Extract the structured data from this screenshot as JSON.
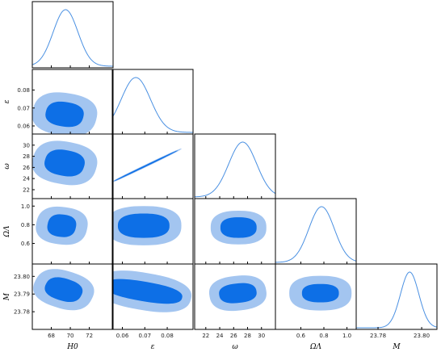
{
  "chart_data": {
    "type": "triangle-corner",
    "parameters": [
      {
        "key": "H0",
        "label": "H0",
        "range": [
          66.0,
          74.5
        ],
        "ticks": [
          68,
          70,
          72
        ],
        "tick_labels": [
          "68",
          "70",
          "72"
        ],
        "peak": 69.5,
        "sigma": 1.3
      },
      {
        "key": "eps",
        "label": "ε",
        "range": [
          0.0555,
          0.0915
        ],
        "ticks": [
          0.06,
          0.07,
          0.08
        ],
        "tick_labels": [
          "0.06",
          "0.07",
          "0.08"
        ],
        "y_ticks": [
          0.06,
          0.07,
          0.08
        ],
        "y_tick_labels": [
          "0.06",
          "0.07",
          "0.08"
        ],
        "peak": 0.066,
        "sigma": 0.0065
      },
      {
        "key": "omega",
        "label": "ω",
        "range": [
          20.4,
          32.0
        ],
        "ticks": [
          22,
          24,
          26,
          28,
          30
        ],
        "tick_labels": [
          "22",
          "24",
          "26",
          "28",
          "30"
        ],
        "y_ticks": [
          22,
          24,
          26,
          28,
          30
        ],
        "y_tick_labels": [
          "22",
          "24",
          "26",
          "28",
          "30"
        ],
        "peak": 27.3,
        "sigma": 2.0
      },
      {
        "key": "OmegaL",
        "label": "ΩΛ",
        "range": [
          0.38,
          1.08
        ],
        "ticks": [
          0.6,
          0.8,
          1.0
        ],
        "tick_labels": [
          "0.6",
          "0.8",
          "1.0"
        ],
        "y_ticks": [
          0.6,
          0.8,
          1.0
        ],
        "y_tick_labels": [
          "0.6",
          "0.8",
          "1.0"
        ],
        "peak": 0.78,
        "sigma": 0.11
      },
      {
        "key": "M",
        "label": "M",
        "range": [
          23.77,
          23.807
        ],
        "ticks": [
          23.78,
          23.8
        ],
        "tick_labels": [
          "23.78",
          "23.80"
        ],
        "y_ticks": [
          23.78,
          23.79,
          23.8
        ],
        "y_tick_labels": [
          "23.78",
          "23.79",
          "23.80"
        ],
        "peak": 23.7945,
        "sigma": 0.0042
      }
    ],
    "pairs": [
      {
        "x": "H0",
        "y": "eps",
        "center_x": 69.4,
        "center_y": 0.0665,
        "rx68": 2.0,
        "ry68": 0.0068,
        "rx95": 3.4,
        "ry95": 0.0118,
        "angle_deg": -12
      },
      {
        "x": "H0",
        "y": "omega",
        "center_x": 69.4,
        "center_y": 26.8,
        "rx68": 2.1,
        "ry68": 2.3,
        "rx95": 3.4,
        "ry95": 3.8,
        "angle_deg": -14
      },
      {
        "x": "eps",
        "y": "omega",
        "center_x": 0.0705,
        "center_y": 26.3,
        "rx68": 0.0165,
        "ry68": 0.12,
        "rx95": 0.0185,
        "ry95": 0.22,
        "angle_deg": 31,
        "note_shape": "narrow degenerate line"
      },
      {
        "x": "omega",
        "y": "OmegaL",
        "center_x": 26.7,
        "center_y": 0.77,
        "rx68": 2.6,
        "ry68": 0.11,
        "rx95": 4.0,
        "ry95": 0.18,
        "angle_deg": 0
      },
      {
        "x": "H0",
        "y": "OmegaL",
        "center_x": 69.1,
        "center_y": 0.79,
        "rx68": 1.5,
        "ry68": 0.12,
        "rx95": 2.7,
        "ry95": 0.2,
        "angle_deg": -10
      },
      {
        "x": "eps",
        "y": "OmegaL",
        "center_x": 0.0695,
        "center_y": 0.79,
        "rx68": 0.0115,
        "ry68": 0.13,
        "rx95": 0.0168,
        "ry95": 0.21,
        "angle_deg": 0
      },
      {
        "x": "OmegaL",
        "y": "M",
        "center_x": 0.77,
        "center_y": 23.7905,
        "rx68": 0.16,
        "ry68": 0.0052,
        "rx95": 0.27,
        "ry95": 0.0098,
        "angle_deg": 0
      },
      {
        "x": "omega",
        "y": "M",
        "center_x": 26.6,
        "center_y": 23.7905,
        "rx68": 2.7,
        "ry68": 0.0055,
        "rx95": 4.1,
        "ry95": 0.0098,
        "angle_deg": 8
      },
      {
        "x": "H0",
        "y": "M",
        "center_x": 69.3,
        "center_y": 23.7925,
        "rx68": 2.0,
        "ry68": 0.0062,
        "rx95": 3.2,
        "ry95": 0.0105,
        "angle_deg": -22
      },
      {
        "x": "eps",
        "y": "M",
        "center_x": 0.0695,
        "center_y": 23.7915,
        "rx68": 0.0175,
        "ry68": 0.0055,
        "rx95": 0.0215,
        "ry95": 0.0105,
        "angle_deg": -12
      }
    ],
    "colors": {
      "contour_95": "#a3c5f0",
      "contour_68": "#0d6fe6",
      "pdf_line": "#4a90e2"
    }
  }
}
